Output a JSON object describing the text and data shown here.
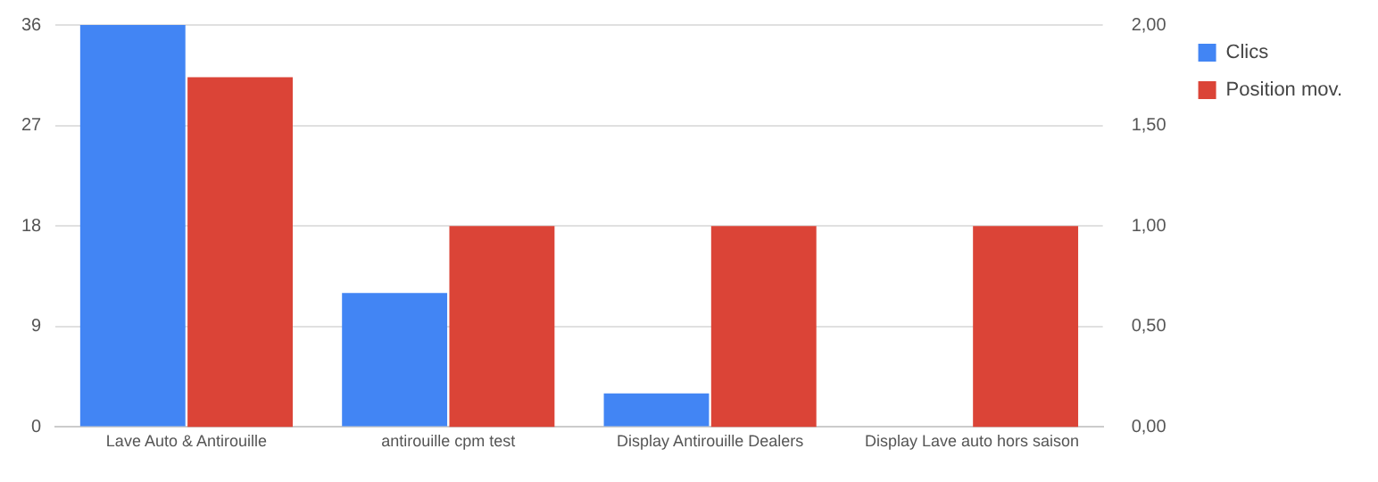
{
  "chart_data": {
    "type": "bar",
    "categories": [
      "Lave Auto & Antirouille",
      "antirouille cpm test",
      "Display Antirouille Dealers",
      "Display Lave auto hors saison"
    ],
    "series": [
      {
        "name": "Clics",
        "color": "#4285f4",
        "values": [
          36,
          12,
          3,
          0
        ]
      },
      {
        "name": "Position mov.",
        "color": "#db4437",
        "axis": "y2",
        "values": [
          1.74,
          1,
          1,
          1
        ]
      }
    ],
    "ylim": [
      0,
      36
    ],
    "yticks": [
      0,
      9,
      18,
      27,
      36
    ],
    "y2lim": [
      0,
      2
    ],
    "y2ticks": [
      {
        "value": 0,
        "label": "0,00"
      },
      {
        "value": 0.5,
        "label": "0,50"
      },
      {
        "value": 1,
        "label": "1,00"
      },
      {
        "value": 1.5,
        "label": "1,50"
      },
      {
        "value": 2,
        "label": "2,00"
      }
    ],
    "grid": "y",
    "legend": "top right"
  }
}
